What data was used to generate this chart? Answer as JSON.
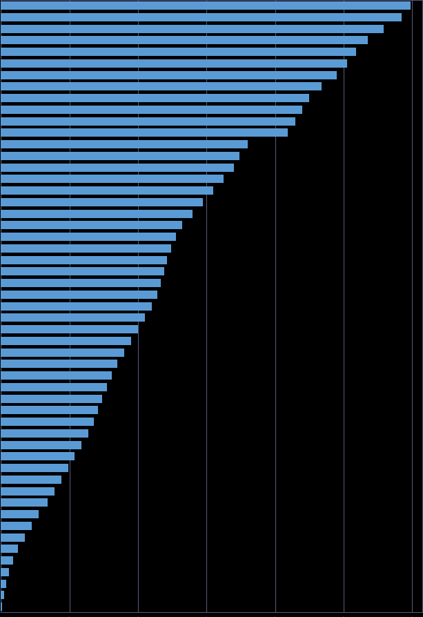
{
  "values": [
    598,
    585,
    558,
    535,
    518,
    505,
    490,
    468,
    450,
    440,
    430,
    418,
    360,
    348,
    340,
    325,
    310,
    295,
    280,
    265,
    255,
    248,
    242,
    238,
    233,
    228,
    220,
    210,
    200,
    190,
    180,
    170,
    162,
    155,
    148,
    142,
    136,
    128,
    118,
    108,
    98,
    88,
    78,
    68,
    55,
    45,
    35,
    25,
    18,
    12,
    8,
    5,
    2
  ],
  "bar_color": "#5b9bd5",
  "background_color": "#000000",
  "grid_color": "#555577",
  "xlim": [
    0,
    615
  ],
  "bar_height": 0.72
}
